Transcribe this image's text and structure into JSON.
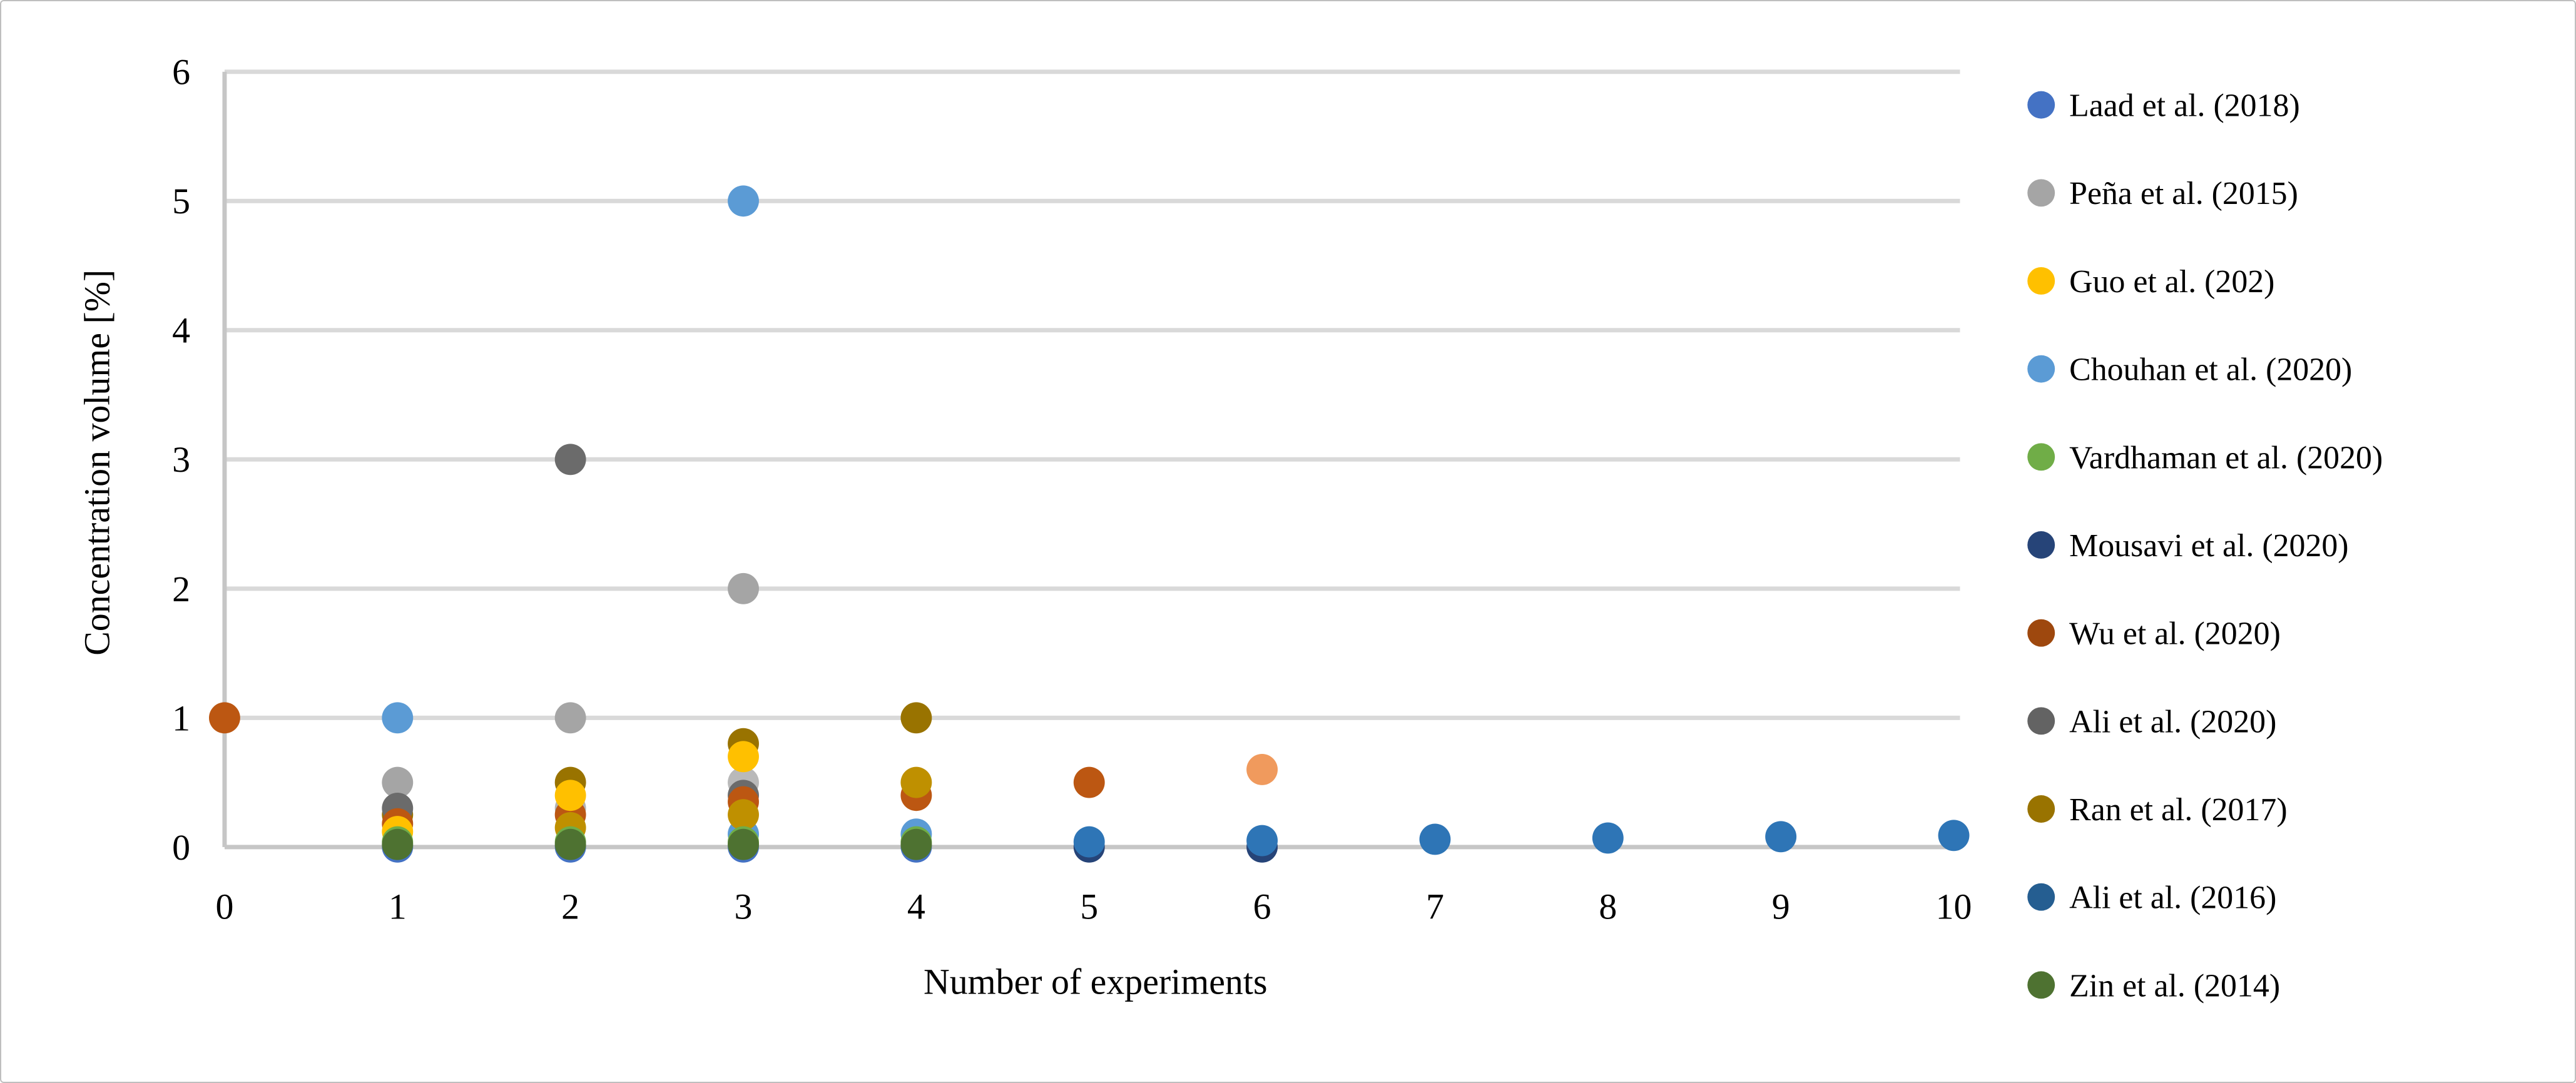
{
  "figure": {
    "background": "#FFFFFF",
    "border_color": "#BFBFBF"
  },
  "chart_data": {
    "type": "scatter",
    "title": "",
    "xlabel": "Number of experiments",
    "ylabel": "Concentration volume [%]",
    "xlim": [
      0,
      10
    ],
    "ylim": [
      0,
      6
    ],
    "xticks": [
      "0",
      "1",
      "2",
      "3",
      "4",
      "5",
      "6",
      "7",
      "8",
      "9",
      "10"
    ],
    "yticks": [
      "0",
      "1",
      "2",
      "3",
      "4",
      "5",
      "6"
    ],
    "grid": "horizontal",
    "gridline_color": "#D9D9D9",
    "axis_line_color": "#C6C6C6",
    "legend_position": "right",
    "series": [
      {
        "name": "Laad et al. (2018)",
        "color": "#4472C4",
        "legend_color": "#4472C4",
        "z": 2,
        "points": [
          [
            1,
            0.0
          ],
          [
            2,
            0.0
          ],
          [
            3,
            0.0
          ],
          [
            4,
            0.0
          ]
        ]
      },
      {
        "name": "Peña et al. (2015)",
        "color": "#A5A5A5",
        "legend_color": "#A5A5A5",
        "z": 4,
        "points": [
          [
            1,
            0.5
          ],
          [
            2,
            1.0
          ],
          [
            3,
            2.0
          ]
        ]
      },
      {
        "name": "Guo et al. (202)",
        "color": "#FFC000",
        "legend_color": "#FFC000",
        "z": 9,
        "points": [
          [
            1,
            0.12
          ],
          [
            2,
            0.4
          ],
          [
            3,
            0.7
          ]
        ]
      },
      {
        "name": "Chouhan et al. (2020)",
        "color": "#5B9BD5",
        "legend_color": "#5B9BD5",
        "z": 7,
        "points": [
          [
            1,
            1.0
          ],
          [
            3,
            5.0
          ],
          [
            3,
            0.1
          ],
          [
            4,
            0.1
          ]
        ]
      },
      {
        "name": "Vardhaman et al. (2020)",
        "color": "#70AD47",
        "legend_color": "#70AD47",
        "z": 10,
        "points": [
          [
            1,
            0.04
          ],
          [
            2,
            0.04
          ],
          [
            3,
            0.04
          ],
          [
            4,
            0.04
          ]
        ]
      },
      {
        "name": "Mousavi et al. (2020)",
        "color": "#264478",
        "legend_color": "#264478",
        "z": 1,
        "points": [
          [
            5,
            0.0
          ],
          [
            6,
            0.0
          ]
        ]
      },
      {
        "name": "Wu et al. (2020)",
        "color": "#BC5712",
        "legend_color": "#9E480E",
        "z": 8,
        "points": [
          [
            0,
            1.0
          ],
          [
            1,
            0.18
          ],
          [
            2,
            0.25
          ],
          [
            3,
            0.35
          ],
          [
            4,
            0.4
          ],
          [
            5,
            0.5
          ]
        ]
      },
      {
        "name": "Ali et al. (2020)",
        "color": "#6B6B6B",
        "legend_color": "#636363",
        "z": 6,
        "points": [
          [
            1,
            0.3
          ],
          [
            2,
            3.0
          ],
          [
            3,
            0.4
          ]
        ]
      },
      {
        "name": "Ran et al. (2017)",
        "color": "#997300",
        "legend_color": "#997300",
        "z": 5,
        "points": [
          [
            1,
            0.25
          ],
          [
            2,
            0.5
          ],
          [
            3,
            0.8
          ],
          [
            4,
            1.0
          ]
        ]
      },
      {
        "name": "Ali et al. (2016)",
        "color": "#2E75B6",
        "legend_color": "#255E91",
        "z": 3,
        "points": [
          [
            5,
            0.04
          ],
          [
            6,
            0.05
          ],
          [
            7,
            0.06
          ],
          [
            8,
            0.07
          ],
          [
            9,
            0.08
          ],
          [
            10,
            0.09
          ]
        ]
      },
      {
        "name": "Zin et al. (2014)",
        "color": "#4E7231",
        "legend_color": "#4E7231",
        "z": 11,
        "points": [
          [
            1,
            0.02
          ],
          [
            2,
            0.02
          ],
          [
            3,
            0.02
          ],
          [
            4,
            0.02
          ]
        ]
      }
    ],
    "unlabeled_points": [
      {
        "x": 2,
        "y": 0.15,
        "color": "#BF9000",
        "z": 9.5
      },
      {
        "x": 3,
        "y": 0.25,
        "color": "#BF9000",
        "z": 9.5
      },
      {
        "x": 4,
        "y": 0.5,
        "color": "#BF9000",
        "z": 9.5
      },
      {
        "x": 6,
        "y": 0.6,
        "color": "#F09A5D",
        "z": 8.5
      },
      {
        "x": 2,
        "y": 0.3,
        "color": "#B3B3B3",
        "z": 4.5
      },
      {
        "x": 3,
        "y": 0.5,
        "color": "#B9B9B9",
        "z": 4.5
      }
    ]
  }
}
